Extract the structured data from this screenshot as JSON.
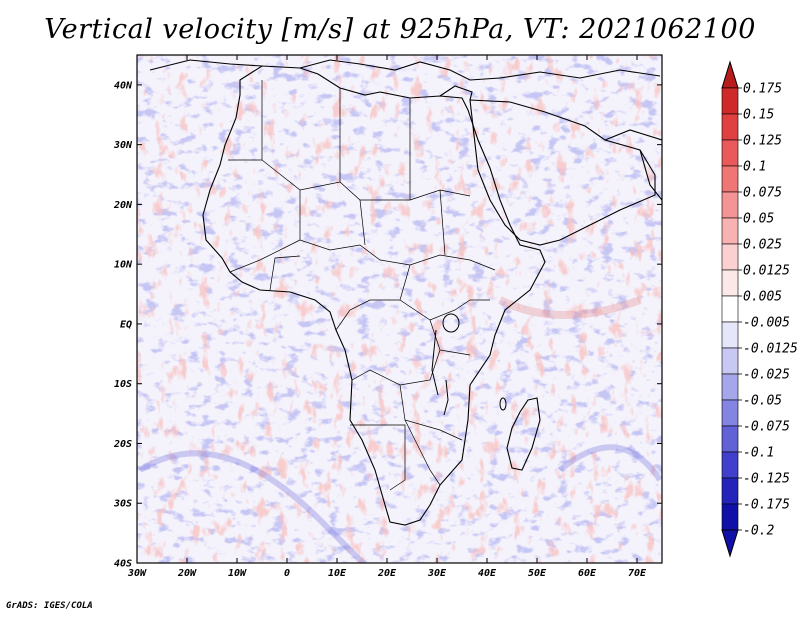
{
  "title": "Vertical velocity [m/s] at 925hPa, VT: 2021062100",
  "credit": "GrADS: IGES/COLA",
  "map": {
    "lon_ticks": [
      "30W",
      "20W",
      "10W",
      "0",
      "10E",
      "20E",
      "30E",
      "40E",
      "50E",
      "60E",
      "70E"
    ],
    "lat_ticks": [
      "40N",
      "30N",
      "20N",
      "10N",
      "EQ",
      "10S",
      "20S",
      "30S",
      "40S"
    ]
  },
  "colorbar": {
    "levels": [
      "0.175",
      "0.15",
      "0.125",
      "0.1",
      "0.075",
      "0.05",
      "0.025",
      "0.0125",
      "0.005",
      "-0.005",
      "-0.0125",
      "-0.025",
      "-0.05",
      "-0.075",
      "-0.1",
      "-0.125",
      "-0.175",
      "-0.2"
    ],
    "colors": [
      "#b81c1c",
      "#cf2a2a",
      "#e04040",
      "#ea5a5a",
      "#f07676",
      "#f59494",
      "#f8b2b2",
      "#fbd0d0",
      "#fde8e8",
      "#ffffff",
      "#e6e6fa",
      "#c8c8f2",
      "#a6a6ea",
      "#8484e2",
      "#6262d8",
      "#4040cc",
      "#2424bb",
      "#1010a8"
    ]
  },
  "regions": {
    "africa": "Africa",
    "madagascar": "Madagascar",
    "arabia": "Arabian Peninsula"
  }
}
